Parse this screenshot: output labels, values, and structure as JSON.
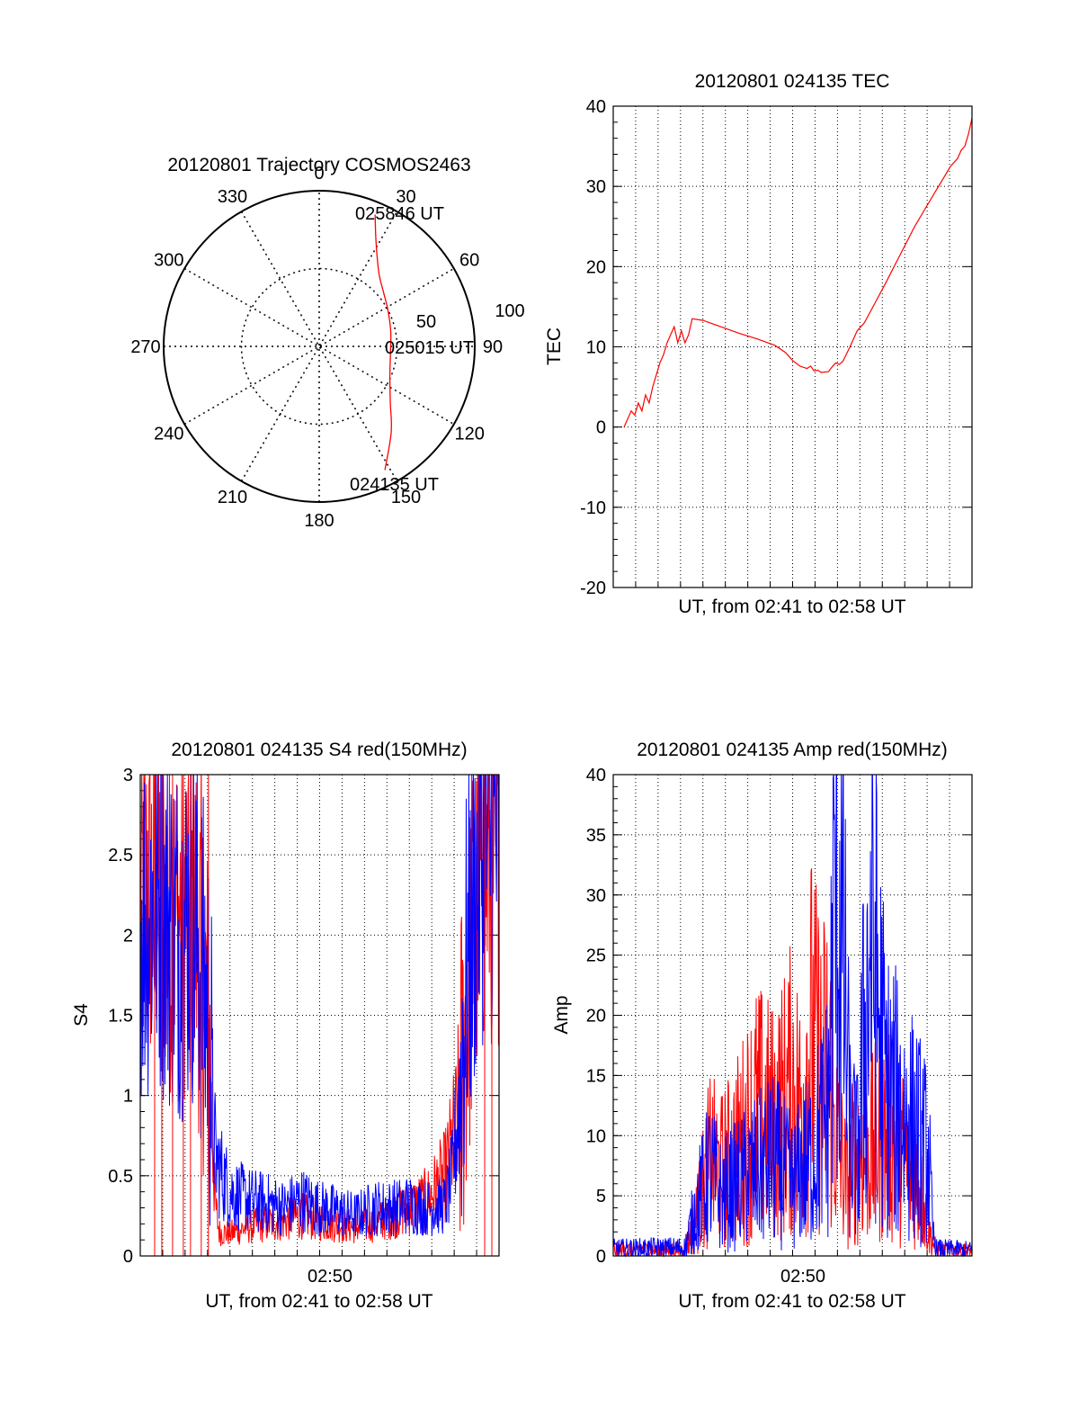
{
  "colors": {
    "red": "#ff0000",
    "blue": "#0000ff",
    "axis": "#000000",
    "grid": "#000000"
  },
  "polar": {
    "title": "20120801 Trajectory COSMOS2463",
    "azimuth_labels": [
      "0",
      "30",
      "60",
      "90",
      "120",
      "150",
      "180",
      "210",
      "240",
      "270",
      "300",
      "330"
    ],
    "ring_labels": [
      "50",
      "100"
    ],
    "end_label": "025846 UT",
    "mid_label": "025015 UT",
    "start_label": "024135 UT"
  },
  "chart_data": [
    {
      "id": "trajectory",
      "type": "scatter",
      "title": "20120801 Trajectory COSMOS2463",
      "projection": "polar",
      "r_max": 100,
      "grid": true,
      "track": [
        {
          "az": 23,
          "r": 92
        },
        {
          "az": 27,
          "r": 80
        },
        {
          "az": 32,
          "r": 70
        },
        {
          "az": 40,
          "r": 60
        },
        {
          "az": 50,
          "r": 54
        },
        {
          "az": 62,
          "r": 50
        },
        {
          "az": 78,
          "r": 47
        },
        {
          "az": 95,
          "r": 46
        },
        {
          "az": 112,
          "r": 49
        },
        {
          "az": 128,
          "r": 58
        },
        {
          "az": 140,
          "r": 72
        },
        {
          "az": 152,
          "r": 90
        }
      ]
    },
    {
      "id": "tec",
      "type": "line",
      "title": "20120801 024135 TEC",
      "xlabel": "UT, from 02:41 to 02:58 UT",
      "ylabel": "TEC",
      "ylim": [
        -20,
        40
      ],
      "yticks": [
        "40",
        "30",
        "20",
        "10",
        "0",
        "-10",
        "-20"
      ],
      "grid": true,
      "series": [
        {
          "color": "red",
          "x": [
            0.03,
            0.05,
            0.06,
            0.07,
            0.08,
            0.09,
            0.1,
            0.11,
            0.12,
            0.13,
            0.14,
            0.15,
            0.16,
            0.17,
            0.18,
            0.19,
            0.2,
            0.21,
            0.22,
            0.25,
            0.3,
            0.35,
            0.4,
            0.45,
            0.48,
            0.5,
            0.52,
            0.54,
            0.55,
            0.56,
            0.57,
            0.58,
            0.6,
            0.61,
            0.62,
            0.63,
            0.64,
            0.66,
            0.68,
            0.7,
            0.73,
            0.76,
            0.8,
            0.84,
            0.88,
            0.9,
            0.92,
            0.94,
            0.96,
            0.97,
            0.98,
            0.99,
            1.0
          ],
          "y": [
            0,
            2,
            1.5,
            3,
            2,
            4,
            3,
            5,
            6.5,
            8,
            9,
            10.5,
            11.5,
            12.5,
            10.5,
            12,
            10.5,
            11.5,
            13.5,
            13.3,
            12.5,
            11.7,
            11,
            10.2,
            9.3,
            8.3,
            7.6,
            7.3,
            7.6,
            7,
            7.1,
            6.8,
            6.9,
            7.5,
            8,
            7.8,
            8.2,
            10,
            12,
            13,
            15.5,
            18,
            21.5,
            25,
            28,
            29.5,
            31,
            32.5,
            33.5,
            34.5,
            35,
            36.5,
            38.5
          ]
        }
      ]
    },
    {
      "id": "s4",
      "type": "line",
      "title": "20120801 024135 S4 red(150MHz)",
      "xlabel": "UT, from 02:41 to 02:58 UT",
      "ylabel": "S4",
      "ylim": [
        0,
        3
      ],
      "yticks": [
        "3",
        "2.5",
        "2",
        "1.5",
        "1",
        "0.5",
        "0"
      ],
      "xtick_labels": [
        "02:50"
      ],
      "grid": true,
      "series": [
        {
          "color": "red",
          "x": [
            0.0,
            0.05,
            0.1,
            0.15,
            0.19,
            0.2,
            0.21,
            0.22,
            0.25,
            0.3,
            0.35,
            0.4,
            0.45,
            0.5,
            0.55,
            0.6,
            0.65,
            0.7,
            0.75,
            0.8,
            0.85,
            0.88,
            0.9,
            0.92,
            0.95,
            1.0
          ],
          "y": [
            2.2,
            2.3,
            2.1,
            2.2,
            1.4,
            0.8,
            0.3,
            0.15,
            0.14,
            0.18,
            0.2,
            0.22,
            0.25,
            0.22,
            0.2,
            0.18,
            0.2,
            0.25,
            0.3,
            0.35,
            0.5,
            0.8,
            1.2,
            1.8,
            2.4,
            2.5
          ]
        },
        {
          "color": "blue",
          "x": [
            0.0,
            0.05,
            0.1,
            0.15,
            0.19,
            0.2,
            0.21,
            0.23,
            0.25,
            0.3,
            0.35,
            0.4,
            0.45,
            0.5,
            0.55,
            0.6,
            0.65,
            0.7,
            0.75,
            0.8,
            0.85,
            0.87,
            0.89,
            0.91,
            0.95,
            1.0
          ],
          "y": [
            2.1,
            2.2,
            2.0,
            2.1,
            1.5,
            1.0,
            0.6,
            0.5,
            0.4,
            0.35,
            0.33,
            0.3,
            0.35,
            0.3,
            0.28,
            0.25,
            0.3,
            0.3,
            0.32,
            0.3,
            0.32,
            0.5,
            1.0,
            1.8,
            2.5,
            2.6
          ]
        }
      ]
    },
    {
      "id": "amp",
      "type": "line",
      "title": "20120801 024135 Amp red(150MHz)",
      "xlabel": "UT, from 02:41 to 02:58 UT",
      "ylabel": "Amp",
      "ylim": [
        0,
        40
      ],
      "yticks": [
        "40",
        "35",
        "30",
        "25",
        "20",
        "15",
        "10",
        "5",
        "0"
      ],
      "xtick_labels": [
        "02:50"
      ],
      "grid": true,
      "series": [
        {
          "color": "red",
          "x": [
            0.0,
            0.2,
            0.23,
            0.27,
            0.3,
            0.35,
            0.4,
            0.45,
            0.5,
            0.52,
            0.55,
            0.58,
            0.6,
            0.62,
            0.65,
            0.68,
            0.7,
            0.75,
            0.8,
            0.85,
            0.88,
            0.9,
            1.0
          ],
          "y": [
            0.5,
            0.5,
            3,
            8,
            7,
            9,
            12,
            11,
            14,
            12,
            18,
            15,
            16,
            10,
            6,
            9,
            8,
            10,
            9,
            6,
            2,
            0.5,
            0.4
          ]
        },
        {
          "color": "blue",
          "x": [
            0.0,
            0.2,
            0.23,
            0.27,
            0.3,
            0.35,
            0.4,
            0.45,
            0.5,
            0.55,
            0.6,
            0.62,
            0.64,
            0.66,
            0.68,
            0.7,
            0.72,
            0.74,
            0.76,
            0.8,
            0.85,
            0.88,
            0.89,
            0.9,
            1.0
          ],
          "y": [
            0.6,
            0.7,
            4,
            7,
            5,
            6,
            7,
            8,
            6,
            8,
            12,
            33,
            25,
            10,
            8,
            18,
            27,
            20,
            14,
            12,
            10,
            8,
            2,
            0.6,
            0.5
          ]
        }
      ]
    }
  ]
}
